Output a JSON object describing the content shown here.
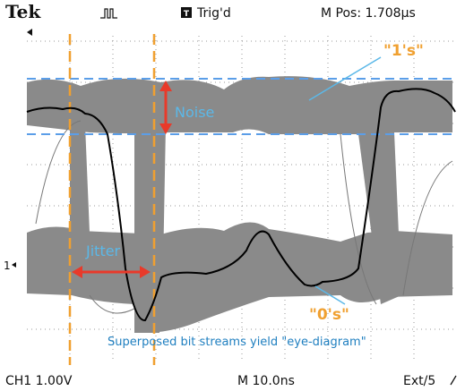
{
  "header": {
    "brand": "Tek",
    "trigger_icon": "T",
    "trigger_status": "Trig'd",
    "position": "M Pos: 1.708µs"
  },
  "annotations": {
    "ones": "\"1's\"",
    "noise": "Noise",
    "jitter": "Jitter",
    "zeros": "\"0's\"",
    "caption": "Superposed bit streams yield \"eye-diagram\""
  },
  "channel_marker": "1",
  "footer": {
    "channel": "CH1  1.00V",
    "timebase": "M 10.0ns",
    "trigger_source": "Ext/5"
  }
}
